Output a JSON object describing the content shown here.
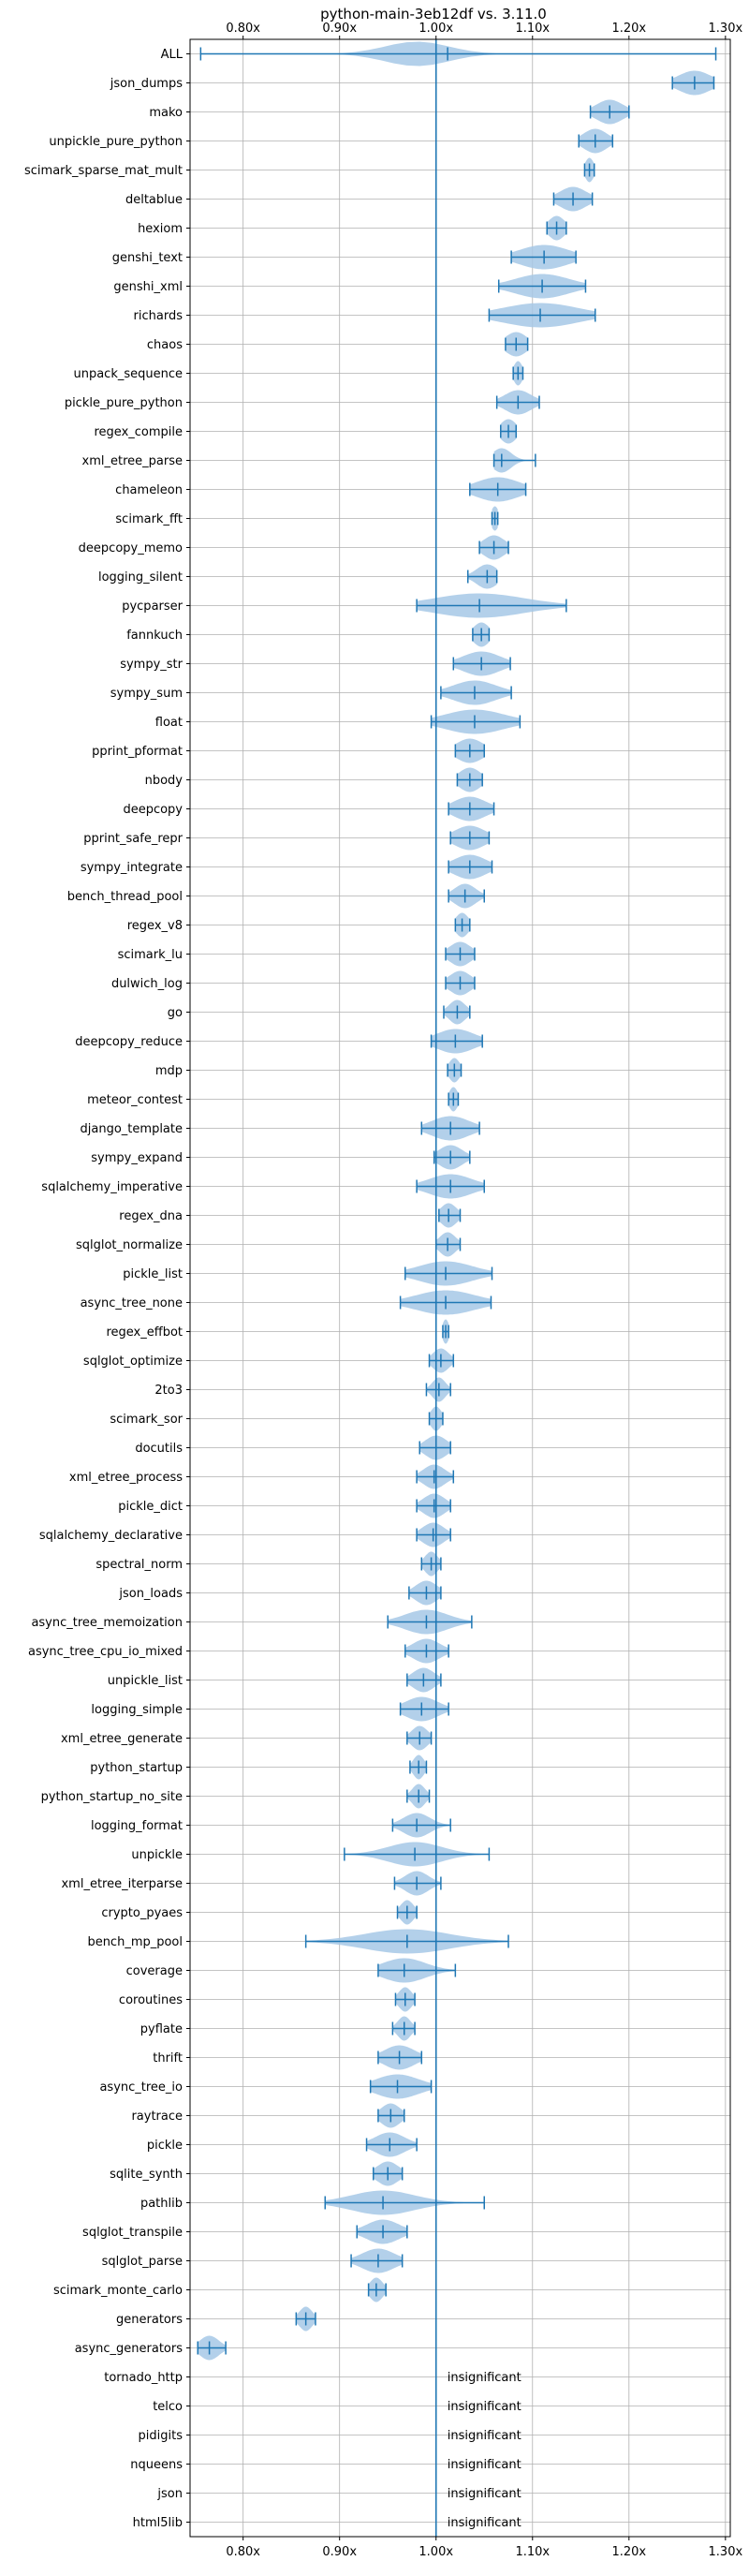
{
  "chart_data": {
    "type": "violin",
    "title": "python-main-3eb12df vs. 3.11.0",
    "xlabel": "",
    "ylabel": "",
    "xlim": [
      0.745,
      1.305
    ],
    "x_ticks": [
      0.8,
      0.9,
      1.0,
      1.1,
      1.2,
      1.3
    ],
    "x_tick_labels": [
      "0.80x",
      "0.90x",
      "1.00x",
      "1.10x",
      "1.20x",
      "1.30x"
    ],
    "reference_line": 1.0,
    "grid": true,
    "colors": {
      "violin_fill": "#a6c8e6",
      "line": "#1f77b4",
      "grid": "#b0b0b0"
    },
    "insignificant_text": "insignificant",
    "benchmarks": [
      {
        "name": "ALL",
        "min": 0.756,
        "max": 1.29,
        "mean": 1.012,
        "median": 0.98,
        "spread": 0.06
      },
      {
        "name": "json_dumps",
        "min": 1.245,
        "max": 1.288,
        "mean": 1.268,
        "median": 1.268,
        "spread": 0.03
      },
      {
        "name": "mako",
        "min": 1.16,
        "max": 1.2,
        "mean": 1.18,
        "median": 1.18,
        "spread": 0.025
      },
      {
        "name": "unpickle_pure_python",
        "min": 1.148,
        "max": 1.183,
        "mean": 1.165,
        "median": 1.165,
        "spread": 0.022
      },
      {
        "name": "scimark_sparse_mat_mult",
        "min": 1.154,
        "max": 1.164,
        "mean": 1.159,
        "median": 1.159,
        "spread": 0.008
      },
      {
        "name": "deltablue",
        "min": 1.122,
        "max": 1.162,
        "mean": 1.142,
        "median": 1.142,
        "spread": 0.025
      },
      {
        "name": "hexiom",
        "min": 1.115,
        "max": 1.135,
        "mean": 1.125,
        "median": 1.125,
        "spread": 0.015
      },
      {
        "name": "genshi_text",
        "min": 1.078,
        "max": 1.145,
        "mean": 1.112,
        "median": 1.112,
        "spread": 0.045
      },
      {
        "name": "genshi_xml",
        "min": 1.065,
        "max": 1.155,
        "mean": 1.11,
        "median": 1.11,
        "spread": 0.05
      },
      {
        "name": "richards",
        "min": 1.055,
        "max": 1.165,
        "mean": 1.108,
        "median": 1.108,
        "spread": 0.07
      },
      {
        "name": "chaos",
        "min": 1.072,
        "max": 1.095,
        "mean": 1.083,
        "median": 1.083,
        "spread": 0.02
      },
      {
        "name": "unpack_sequence",
        "min": 1.08,
        "max": 1.09,
        "mean": 1.085,
        "median": 1.085,
        "spread": 0.008
      },
      {
        "name": "pickle_pure_python",
        "min": 1.063,
        "max": 1.107,
        "mean": 1.085,
        "median": 1.085,
        "spread": 0.025
      },
      {
        "name": "regex_compile",
        "min": 1.067,
        "max": 1.083,
        "mean": 1.075,
        "median": 1.075,
        "spread": 0.015
      },
      {
        "name": "xml_etree_parse",
        "min": 1.06,
        "max": 1.103,
        "mean": 1.068,
        "median": 1.068,
        "spread": 0.018
      },
      {
        "name": "chameleon",
        "min": 1.035,
        "max": 1.093,
        "mean": 1.064,
        "median": 1.064,
        "spread": 0.04
      },
      {
        "name": "scimark_fft",
        "min": 1.058,
        "max": 1.064,
        "mean": 1.061,
        "median": 1.061,
        "spread": 0.007
      },
      {
        "name": "deepcopy_memo",
        "min": 1.045,
        "max": 1.075,
        "mean": 1.06,
        "median": 1.06,
        "spread": 0.02
      },
      {
        "name": "logging_silent",
        "min": 1.033,
        "max": 1.063,
        "mean": 1.053,
        "median": 1.053,
        "spread": 0.02
      },
      {
        "name": "pycparser",
        "min": 0.98,
        "max": 1.135,
        "mean": 1.045,
        "median": 1.045,
        "spread": 0.085
      },
      {
        "name": "fannkuch",
        "min": 1.038,
        "max": 1.055,
        "mean": 1.047,
        "median": 1.047,
        "spread": 0.015
      },
      {
        "name": "sympy_str",
        "min": 1.018,
        "max": 1.077,
        "mean": 1.047,
        "median": 1.047,
        "spread": 0.035
      },
      {
        "name": "sympy_sum",
        "min": 1.005,
        "max": 1.078,
        "mean": 1.04,
        "median": 1.04,
        "spread": 0.04
      },
      {
        "name": "float",
        "min": 0.995,
        "max": 1.087,
        "mean": 1.04,
        "median": 1.04,
        "spread": 0.055
      },
      {
        "name": "pprint_pformat",
        "min": 1.02,
        "max": 1.05,
        "mean": 1.035,
        "median": 1.035,
        "spread": 0.025
      },
      {
        "name": "nbody",
        "min": 1.022,
        "max": 1.048,
        "mean": 1.035,
        "median": 1.035,
        "spread": 0.02
      },
      {
        "name": "deepcopy",
        "min": 1.013,
        "max": 1.06,
        "mean": 1.035,
        "median": 1.035,
        "spread": 0.03
      },
      {
        "name": "pprint_safe_repr",
        "min": 1.015,
        "max": 1.055,
        "mean": 1.035,
        "median": 1.035,
        "spread": 0.028
      },
      {
        "name": "sympy_integrate",
        "min": 1.013,
        "max": 1.058,
        "mean": 1.035,
        "median": 1.035,
        "spread": 0.03
      },
      {
        "name": "bench_thread_pool",
        "min": 1.013,
        "max": 1.05,
        "mean": 1.03,
        "median": 1.03,
        "spread": 0.02
      },
      {
        "name": "regex_v8",
        "min": 1.02,
        "max": 1.035,
        "mean": 1.027,
        "median": 1.027,
        "spread": 0.012
      },
      {
        "name": "scimark_lu",
        "min": 1.01,
        "max": 1.04,
        "mean": 1.025,
        "median": 1.025,
        "spread": 0.02
      },
      {
        "name": "dulwich_log",
        "min": 1.01,
        "max": 1.04,
        "mean": 1.025,
        "median": 1.025,
        "spread": 0.02
      },
      {
        "name": "go",
        "min": 1.008,
        "max": 1.035,
        "mean": 1.022,
        "median": 1.022,
        "spread": 0.015
      },
      {
        "name": "deepcopy_reduce",
        "min": 0.995,
        "max": 1.048,
        "mean": 1.02,
        "median": 1.02,
        "spread": 0.035
      },
      {
        "name": "mdp",
        "min": 1.012,
        "max": 1.026,
        "mean": 1.019,
        "median": 1.019,
        "spread": 0.01
      },
      {
        "name": "meteor_contest",
        "min": 1.013,
        "max": 1.023,
        "mean": 1.018,
        "median": 1.018,
        "spread": 0.008
      },
      {
        "name": "django_template",
        "min": 0.985,
        "max": 1.045,
        "mean": 1.015,
        "median": 1.015,
        "spread": 0.035
      },
      {
        "name": "sympy_expand",
        "min": 0.998,
        "max": 1.035,
        "mean": 1.015,
        "median": 1.015,
        "spread": 0.022
      },
      {
        "name": "sqlalchemy_imperative",
        "min": 0.98,
        "max": 1.05,
        "mean": 1.015,
        "median": 1.015,
        "spread": 0.04
      },
      {
        "name": "regex_dna",
        "min": 1.003,
        "max": 1.025,
        "mean": 1.013,
        "median": 1.013,
        "spread": 0.015
      },
      {
        "name": "sqlglot_normalize",
        "min": 1.0,
        "max": 1.025,
        "mean": 1.012,
        "median": 1.012,
        "spread": 0.015
      },
      {
        "name": "pickle_list",
        "min": 0.968,
        "max": 1.058,
        "mean": 1.01,
        "median": 1.01,
        "spread": 0.05
      },
      {
        "name": "async_tree_none",
        "min": 0.963,
        "max": 1.057,
        "mean": 1.01,
        "median": 1.01,
        "spread": 0.055
      },
      {
        "name": "regex_effbot",
        "min": 1.007,
        "max": 1.013,
        "mean": 1.01,
        "median": 1.01,
        "spread": 0.006
      },
      {
        "name": "sqlglot_optimize",
        "min": 0.993,
        "max": 1.018,
        "mean": 1.005,
        "median": 1.005,
        "spread": 0.015
      },
      {
        "name": "2to3",
        "min": 0.99,
        "max": 1.015,
        "mean": 1.003,
        "median": 1.003,
        "spread": 0.012
      },
      {
        "name": "scimark_sor",
        "min": 0.993,
        "max": 1.007,
        "mean": 1.0,
        "median": 1.0,
        "spread": 0.01
      },
      {
        "name": "docutils",
        "min": 0.983,
        "max": 1.015,
        "mean": 1.0,
        "median": 1.0,
        "spread": 0.02
      },
      {
        "name": "xml_etree_process",
        "min": 0.98,
        "max": 1.018,
        "mean": 0.998,
        "median": 0.998,
        "spread": 0.02
      },
      {
        "name": "pickle_dict",
        "min": 0.98,
        "max": 1.015,
        "mean": 0.998,
        "median": 0.998,
        "spread": 0.02
      },
      {
        "name": "sqlalchemy_declarative",
        "min": 0.98,
        "max": 1.015,
        "mean": 0.997,
        "median": 0.997,
        "spread": 0.02
      },
      {
        "name": "spectral_norm",
        "min": 0.985,
        "max": 1.005,
        "mean": 0.995,
        "median": 0.995,
        "spread": 0.012
      },
      {
        "name": "json_loads",
        "min": 0.972,
        "max": 1.005,
        "mean": 0.99,
        "median": 0.99,
        "spread": 0.02
      },
      {
        "name": "async_tree_memoization",
        "min": 0.95,
        "max": 1.037,
        "mean": 0.99,
        "median": 0.99,
        "spread": 0.04
      },
      {
        "name": "async_tree_cpu_io_mixed",
        "min": 0.968,
        "max": 1.013,
        "mean": 0.99,
        "median": 0.99,
        "spread": 0.025
      },
      {
        "name": "unpickle_list",
        "min": 0.97,
        "max": 1.005,
        "mean": 0.987,
        "median": 0.987,
        "spread": 0.02
      },
      {
        "name": "logging_simple",
        "min": 0.963,
        "max": 1.013,
        "mean": 0.985,
        "median": 0.985,
        "spread": 0.03
      },
      {
        "name": "xml_etree_generate",
        "min": 0.97,
        "max": 0.995,
        "mean": 0.983,
        "median": 0.983,
        "spread": 0.015
      },
      {
        "name": "python_startup",
        "min": 0.973,
        "max": 0.99,
        "mean": 0.982,
        "median": 0.982,
        "spread": 0.01
      },
      {
        "name": "python_startup_no_site",
        "min": 0.97,
        "max": 0.993,
        "mean": 0.982,
        "median": 0.982,
        "spread": 0.012
      },
      {
        "name": "logging_format",
        "min": 0.955,
        "max": 1.015,
        "mean": 0.98,
        "median": 0.98,
        "spread": 0.025
      },
      {
        "name": "unpickle",
        "min": 0.905,
        "max": 1.055,
        "mean": 0.978,
        "median": 0.978,
        "spread": 0.05
      },
      {
        "name": "xml_etree_iterparse",
        "min": 0.957,
        "max": 1.005,
        "mean": 0.98,
        "median": 0.98,
        "spread": 0.022
      },
      {
        "name": "crypto_pyaes",
        "min": 0.96,
        "max": 0.98,
        "mean": 0.97,
        "median": 0.97,
        "spread": 0.012
      },
      {
        "name": "bench_mp_pool",
        "min": 0.865,
        "max": 1.075,
        "mean": 0.97,
        "median": 0.97,
        "spread": 0.08
      },
      {
        "name": "coverage",
        "min": 0.94,
        "max": 1.02,
        "mean": 0.967,
        "median": 0.967,
        "spread": 0.04
      },
      {
        "name": "coroutines",
        "min": 0.958,
        "max": 0.978,
        "mean": 0.968,
        "median": 0.968,
        "spread": 0.012
      },
      {
        "name": "pyflate",
        "min": 0.955,
        "max": 0.978,
        "mean": 0.967,
        "median": 0.967,
        "spread": 0.012
      },
      {
        "name": "thrift",
        "min": 0.94,
        "max": 0.985,
        "mean": 0.962,
        "median": 0.962,
        "spread": 0.028
      },
      {
        "name": "async_tree_io",
        "min": 0.932,
        "max": 0.995,
        "mean": 0.96,
        "median": 0.96,
        "spread": 0.04
      },
      {
        "name": "raytrace",
        "min": 0.94,
        "max": 0.967,
        "mean": 0.953,
        "median": 0.953,
        "spread": 0.018
      },
      {
        "name": "pickle",
        "min": 0.928,
        "max": 0.98,
        "mean": 0.952,
        "median": 0.952,
        "spread": 0.028
      },
      {
        "name": "sqlite_synth",
        "min": 0.935,
        "max": 0.965,
        "mean": 0.95,
        "median": 0.95,
        "spread": 0.02
      },
      {
        "name": "pathlib",
        "min": 0.885,
        "max": 1.05,
        "mean": 0.945,
        "median": 0.945,
        "spread": 0.06
      },
      {
        "name": "sqlglot_transpile",
        "min": 0.918,
        "max": 0.97,
        "mean": 0.945,
        "median": 0.945,
        "spread": 0.03
      },
      {
        "name": "sqlglot_parse",
        "min": 0.912,
        "max": 0.965,
        "mean": 0.94,
        "median": 0.94,
        "spread": 0.03
      },
      {
        "name": "scimark_monte_carlo",
        "min": 0.93,
        "max": 0.948,
        "mean": 0.938,
        "median": 0.938,
        "spread": 0.012
      },
      {
        "name": "generators",
        "min": 0.855,
        "max": 0.875,
        "mean": 0.865,
        "median": 0.865,
        "spread": 0.012
      },
      {
        "name": "async_generators",
        "min": 0.753,
        "max": 0.782,
        "mean": 0.765,
        "median": 0.765,
        "spread": 0.018
      },
      {
        "name": "tornado_http",
        "insignificant": true
      },
      {
        "name": "telco",
        "insignificant": true
      },
      {
        "name": "pidigits",
        "insignificant": true
      },
      {
        "name": "nqueens",
        "insignificant": true
      },
      {
        "name": "json",
        "insignificant": true
      },
      {
        "name": "html5lib",
        "insignificant": true
      }
    ]
  }
}
